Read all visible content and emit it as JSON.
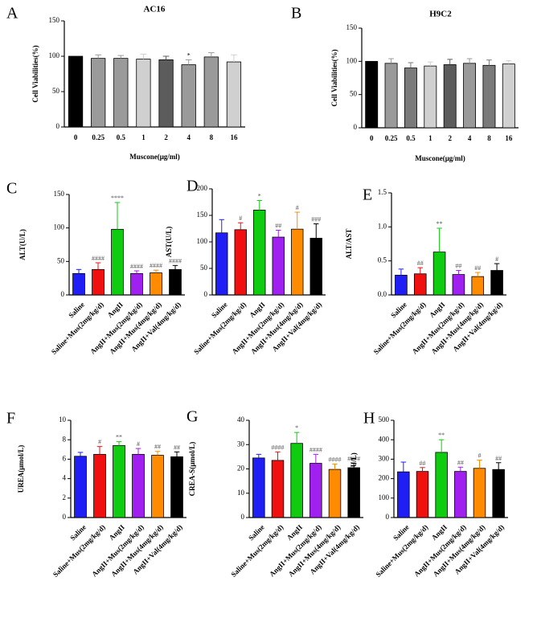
{
  "chart_data": [
    {
      "panel": "A",
      "type": "bar",
      "title": "AC16",
      "xlabel": "Muscone(μg/ml)",
      "ylabel": "Cell Viabilities(%)",
      "ylim": [
        0,
        150
      ],
      "yticks": [
        "0",
        "50",
        "100",
        "150"
      ],
      "categories": [
        "0",
        "0.25",
        "0.5",
        "1",
        "2",
        "4",
        "8",
        "16"
      ],
      "values": [
        100,
        97,
        97,
        96,
        95,
        88,
        99,
        92
      ],
      "errors": [
        0,
        5,
        4,
        7,
        5,
        7,
        6,
        10
      ],
      "colors": [
        "#000000",
        "#9a9a9a",
        "#9a9a9a",
        "#d0d0d0",
        "#5c5c5c",
        "#9a9a9a",
        "#9a9a9a",
        "#d0d0d0"
      ],
      "annotations": [
        "",
        "",
        "",
        "",
        "",
        "*",
        "",
        ""
      ],
      "annotation_color": "#000000"
    },
    {
      "panel": "B",
      "type": "bar",
      "title": "H9C2",
      "xlabel": "Muscone(μg/ml)",
      "ylabel": "Cell Viabilities(%)",
      "ylim": [
        0,
        150
      ],
      "yticks": [
        "0",
        "50",
        "100",
        "150"
      ],
      "categories": [
        "0",
        "0.25",
        "0.5",
        "1",
        "2",
        "4",
        "8",
        "16"
      ],
      "values": [
        100,
        97,
        90,
        93,
        95,
        97,
        94,
        96
      ],
      "errors": [
        0,
        7,
        8,
        6,
        8,
        7,
        8,
        5
      ],
      "colors": [
        "#000000",
        "#9a9a9a",
        "#7a7a7a",
        "#d0d0d0",
        "#5c5c5c",
        "#9a9a9a",
        "#7a7a7a",
        "#d0d0d0"
      ],
      "annotations": [
        "",
        "",
        "",
        "",
        "",
        "",
        "",
        ""
      ],
      "annotation_color": "#000000"
    },
    {
      "panel": "C",
      "type": "bar",
      "title": "",
      "xlabel": "",
      "ylabel": "ALT(U/L)",
      "ylim": [
        0,
        150
      ],
      "yticks": [
        "0",
        "50",
        "100",
        "150"
      ],
      "categories": [
        "Saline",
        "Saline+Mus(2mg/kg/d)",
        "AngII",
        "AngII+Mus(2mg/kg/d)",
        "AngII+Mus(4mg/kg/d)",
        "AngII+Val(4mg/kg/d)"
      ],
      "values": [
        32,
        38,
        98,
        32,
        33,
        38
      ],
      "errors": [
        6,
        10,
        40,
        4,
        4,
        6
      ],
      "colors": [
        "#1f1ff5",
        "#f01010",
        "#10cc10",
        "#a020f0",
        "#ff8c00",
        "#000000"
      ],
      "annotations": [
        "",
        "####",
        "****",
        "####",
        "####",
        "####"
      ],
      "annotation_color": "#555555"
    },
    {
      "panel": "D",
      "type": "bar",
      "title": "",
      "xlabel": "",
      "ylabel": "AST(U/L)",
      "ylim": [
        0,
        200
      ],
      "yticks": [
        "0",
        "50",
        "100",
        "150",
        "200"
      ],
      "categories": [
        "Saline",
        "Saline+Mus(2mg/kg/d)",
        "AngII",
        "AngII+Mus(2mg/kg/d)",
        "AngII+Mus(4mg/kg/d)",
        "AngII+Val(4mg/kg/d)"
      ],
      "values": [
        117,
        123,
        160,
        109,
        124,
        107
      ],
      "errors": [
        25,
        13,
        18,
        13,
        32,
        27
      ],
      "colors": [
        "#1f1ff5",
        "#f01010",
        "#10cc10",
        "#a020f0",
        "#ff8c00",
        "#000000"
      ],
      "annotations": [
        "",
        "#",
        "*",
        "##",
        "#",
        "###"
      ],
      "annotation_color": "#555555"
    },
    {
      "panel": "E",
      "type": "bar",
      "title": "",
      "xlabel": "",
      "ylabel": "ALT/AST",
      "ylim": [
        0,
        1.5
      ],
      "yticks": [
        "0.0",
        "0.5",
        "1.0",
        "1.5"
      ],
      "categories": [
        "Saline",
        "Saline+Mus(2mg/kg/d)",
        "AngII",
        "AngII+Mus(2mg/kg/d)",
        "AngII+Mus(4mg/kg/d)",
        "AngII+Val(4mg/kg/d)"
      ],
      "values": [
        0.29,
        0.31,
        0.63,
        0.3,
        0.27,
        0.36
      ],
      "errors": [
        0.09,
        0.09,
        0.35,
        0.06,
        0.06,
        0.1
      ],
      "colors": [
        "#1f1ff5",
        "#f01010",
        "#10cc10",
        "#a020f0",
        "#ff8c00",
        "#000000"
      ],
      "annotations": [
        "",
        "##",
        "**",
        "##",
        "##",
        "#"
      ],
      "annotation_color": "#555555"
    },
    {
      "panel": "F",
      "type": "bar",
      "title": "",
      "xlabel": "",
      "ylabel": "UREA(μmol/L)",
      "ylim": [
        0,
        10
      ],
      "yticks": [
        "0",
        "2",
        "4",
        "6",
        "8",
        "10"
      ],
      "categories": [
        "Saline",
        "Saline+Mus(2mg/kg/d)",
        "AngII",
        "AngII+Mus(2mg/kg/d)",
        "AngII+Mus(4mg/kg/d)",
        "AngII+Val(4mg/kg/d)"
      ],
      "values": [
        6.3,
        6.5,
        7.4,
        6.5,
        6.4,
        6.25
      ],
      "errors": [
        0.4,
        0.8,
        0.4,
        0.6,
        0.4,
        0.5
      ],
      "colors": [
        "#1f1ff5",
        "#f01010",
        "#10cc10",
        "#a020f0",
        "#ff8c00",
        "#000000"
      ],
      "annotations": [
        "",
        "#",
        "**",
        "#",
        "##",
        "##"
      ],
      "annotation_color": "#555555"
    },
    {
      "panel": "G",
      "type": "bar",
      "title": "",
      "xlabel": "",
      "ylabel": "CREA-S(μmol/L)",
      "ylim": [
        0,
        40
      ],
      "yticks": [
        "0",
        "10",
        "20",
        "30",
        "40"
      ],
      "categories": [
        "Saline",
        "Saline+Mus(2mg/kg/d)",
        "AngII",
        "AngII+Mus(2mg/kg/d)",
        "AngII+Mus(4mg/kg/d)",
        "AngII+Val(4mg/kg/d)"
      ],
      "values": [
        24.5,
        23.5,
        30.5,
        22.3,
        19.8,
        20.5
      ],
      "errors": [
        1.5,
        3.5,
        4.5,
        3.7,
        2.2,
        1.8
      ],
      "colors": [
        "#1f1ff5",
        "#f01010",
        "#10cc10",
        "#a020f0",
        "#ff8c00",
        "#000000"
      ],
      "annotations": [
        "",
        "####",
        "*",
        "####",
        "####",
        "####"
      ],
      "annotation_color": "#555555"
    },
    {
      "panel": "H",
      "type": "bar",
      "title": "",
      "xlabel": "",
      "ylabel": "LDH(U/L)",
      "ylim": [
        0,
        500
      ],
      "yticks": [
        "0",
        "100",
        "200",
        "300",
        "400",
        "500"
      ],
      "categories": [
        "Saline",
        "Saline+Mus(2mg/kg/d)",
        "AngII",
        "AngII+Mus(2mg/kg/d)",
        "AngII+Mus(4mg/kg/d)",
        "AngII+Val(4mg/kg/d)"
      ],
      "values": [
        235,
        237,
        335,
        237,
        253,
        247
      ],
      "errors": [
        50,
        20,
        65,
        22,
        42,
        35
      ],
      "colors": [
        "#1f1ff5",
        "#f01010",
        "#10cc10",
        "#a020f0",
        "#ff8c00",
        "#000000"
      ],
      "annotations": [
        "",
        "##",
        "**",
        "##",
        "#",
        "##"
      ],
      "annotation_color": "#555555"
    }
  ]
}
